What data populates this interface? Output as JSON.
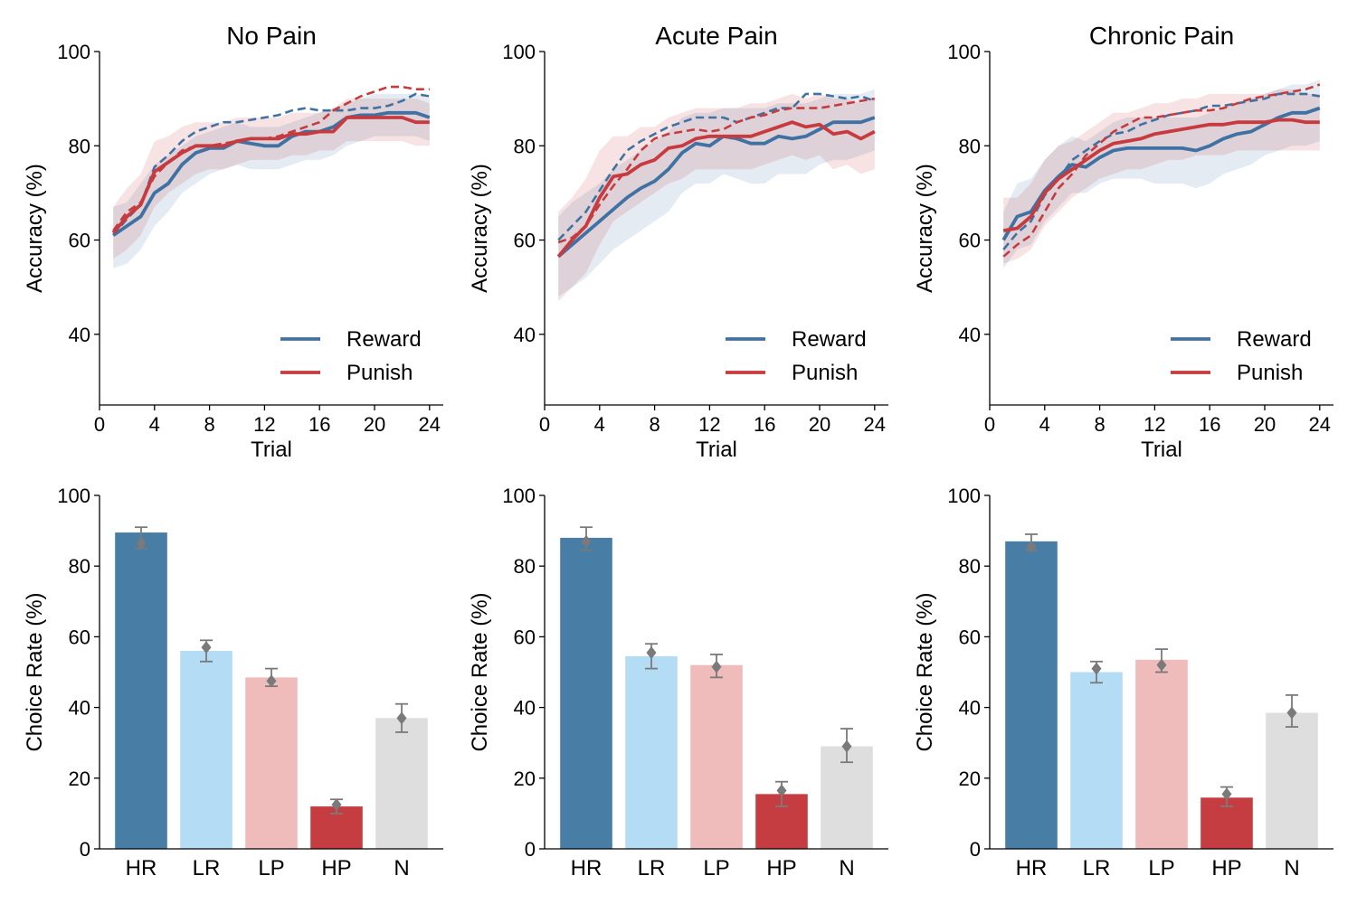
{
  "chart_data": [
    {
      "type": "line",
      "title": "No Pain",
      "xlabel": "Trial",
      "ylabel": "Accuracy (%)",
      "xlim": [
        0,
        25
      ],
      "ylim": [
        25,
        100
      ],
      "xticks": [
        0,
        4,
        8,
        12,
        16,
        20,
        24
      ],
      "yticks": [
        40,
        60,
        80,
        100
      ],
      "legend": {
        "placement": "bottom-right",
        "entries": [
          "Reward",
          "Punish"
        ]
      },
      "x": [
        1,
        2,
        3,
        4,
        5,
        6,
        7,
        8,
        9,
        10,
        11,
        12,
        13,
        14,
        15,
        16,
        17,
        18,
        19,
        20,
        21,
        22,
        23,
        24
      ],
      "series": [
        {
          "name": "Reward",
          "color": "#3f72a2",
          "style": "solid",
          "values": [
            61,
            63,
            65,
            70,
            72,
            76,
            78.5,
            79.5,
            79.5,
            81,
            80.5,
            80,
            80,
            82,
            83,
            83,
            84,
            86,
            86.5,
            86.5,
            87,
            87,
            87,
            86
          ],
          "band_low": [
            54,
            55,
            58,
            63,
            66,
            70,
            72,
            74,
            75,
            76,
            75,
            75,
            75,
            76,
            77,
            77,
            78,
            80,
            81,
            82,
            82,
            82,
            82,
            81
          ],
          "band_high": [
            67,
            68,
            72,
            76,
            78,
            80,
            82,
            83,
            84,
            85,
            84,
            84,
            84,
            85,
            86,
            87,
            88,
            89,
            90,
            91,
            91,
            91,
            91,
            90
          ]
        },
        {
          "name": "",
          "color": "#3f72a2",
          "style": "dashed",
          "values": [
            61,
            64.5,
            67.5,
            75.5,
            78,
            81,
            83,
            84,
            85,
            85,
            85.5,
            86,
            86.5,
            87.5,
            88,
            87.5,
            87.5,
            87.5,
            88,
            88,
            88.5,
            89.5,
            91,
            90.5
          ]
        },
        {
          "name": "Punish",
          "color": "#c73b3f",
          "style": "solid",
          "values": [
            61.5,
            65,
            67.5,
            74.5,
            76.5,
            78.5,
            80,
            80,
            80,
            81,
            81.5,
            81.5,
            81.5,
            82.5,
            82.5,
            83,
            83,
            86,
            86,
            86,
            86,
            86,
            85,
            85
          ],
          "band_low": [
            56,
            58,
            61,
            67,
            70,
            72,
            74,
            75,
            75,
            76,
            77,
            77,
            77,
            78,
            78,
            79,
            79,
            81,
            81,
            81,
            81,
            81,
            80,
            80
          ],
          "band_high": [
            67,
            71,
            74,
            81,
            82,
            84,
            85,
            85,
            85,
            86,
            86,
            86,
            86,
            87,
            87,
            87,
            88,
            90,
            90,
            90,
            90,
            90,
            90,
            89
          ]
        },
        {
          "name": "",
          "color": "#c73b3f",
          "style": "dashed",
          "values": [
            62,
            66,
            68,
            73.5,
            76.5,
            79,
            80,
            80,
            80.5,
            81,
            81.5,
            81.5,
            82,
            83,
            84,
            85,
            87.5,
            89,
            90.5,
            91.5,
            92.5,
            92.5,
            92,
            92
          ]
        }
      ]
    },
    {
      "type": "line",
      "title": "Acute Pain",
      "xlabel": "Trial",
      "ylabel": "Accuracy (%)",
      "xlim": [
        0,
        25
      ],
      "ylim": [
        25,
        100
      ],
      "xticks": [
        0,
        4,
        8,
        12,
        16,
        20,
        24
      ],
      "yticks": [
        40,
        60,
        80,
        100
      ],
      "legend": {
        "placement": "bottom-right",
        "entries": [
          "Reward",
          "Punish"
        ]
      },
      "x": [
        1,
        2,
        3,
        4,
        5,
        6,
        7,
        8,
        9,
        10,
        11,
        12,
        13,
        14,
        15,
        16,
        17,
        18,
        19,
        20,
        21,
        22,
        23,
        24
      ],
      "series": [
        {
          "name": "Reward",
          "color": "#3f72a2",
          "style": "solid",
          "values": [
            56.5,
            59,
            61.5,
            64,
            66.5,
            69,
            71,
            72.5,
            75,
            78.5,
            80.5,
            80,
            82,
            81.5,
            80.5,
            80.5,
            82,
            81.5,
            82,
            83.5,
            85,
            85,
            85,
            86
          ],
          "band_low": [
            48,
            50,
            52,
            55,
            58,
            60,
            62,
            64,
            66,
            70,
            72,
            72,
            74,
            73,
            72,
            72,
            74,
            74,
            74,
            76,
            77,
            77,
            78,
            79
          ],
          "band_high": [
            65,
            68,
            70,
            72,
            75,
            77,
            79,
            81,
            83,
            86,
            87,
            87,
            88,
            88,
            88,
            88,
            89,
            89,
            89,
            90,
            91,
            91,
            91,
            92
          ]
        },
        {
          "name": "",
          "color": "#3f72a2",
          "style": "dashed",
          "values": [
            60,
            63,
            66,
            70.5,
            75,
            79,
            81,
            82.5,
            84,
            85,
            86,
            86,
            86,
            85,
            86,
            87,
            88,
            88,
            91,
            91,
            90.5,
            90,
            90.5,
            89.5
          ]
        },
        {
          "name": "Punish",
          "color": "#c73b3f",
          "style": "solid",
          "values": [
            56.5,
            60,
            63,
            69,
            73.5,
            74,
            76,
            77,
            79.5,
            80,
            81.5,
            82,
            82,
            82,
            82,
            83,
            84,
            85,
            84,
            84.5,
            82.5,
            83,
            81.5,
            83
          ],
          "band_low": [
            47,
            50,
            53,
            59,
            64,
            66,
            68,
            70,
            72,
            73,
            75,
            75,
            75,
            75,
            75,
            76,
            77,
            78,
            77,
            78,
            75,
            76,
            74,
            75
          ],
          "band_high": [
            66,
            69,
            73,
            79,
            82,
            82,
            84,
            84,
            86,
            87,
            88,
            88,
            88,
            88,
            89,
            89,
            90,
            91,
            90,
            91,
            90,
            90,
            89,
            90
          ]
        },
        {
          "name": "",
          "color": "#c73b3f",
          "style": "dashed",
          "values": [
            59.5,
            60.5,
            63,
            67.5,
            71.5,
            75,
            79,
            81.5,
            82.5,
            83,
            83.5,
            83,
            83.5,
            85,
            86,
            86.5,
            87.5,
            88,
            88,
            88,
            88.5,
            89,
            89.5,
            90
          ]
        }
      ]
    },
    {
      "type": "line",
      "title": "Chronic Pain",
      "xlabel": "Trial",
      "ylabel": "Accuracy (%)",
      "xlim": [
        0,
        25
      ],
      "ylim": [
        25,
        100
      ],
      "xticks": [
        0,
        4,
        8,
        12,
        16,
        20,
        24
      ],
      "yticks": [
        40,
        60,
        80,
        100
      ],
      "legend": {
        "placement": "bottom-right",
        "entries": [
          "Reward",
          "Punish"
        ]
      },
      "x": [
        1,
        2,
        3,
        4,
        5,
        6,
        7,
        8,
        9,
        10,
        11,
        12,
        13,
        14,
        15,
        16,
        17,
        18,
        19,
        20,
        21,
        22,
        23,
        24
      ],
      "series": [
        {
          "name": "Reward",
          "color": "#3f72a2",
          "style": "solid",
          "values": [
            60,
            65,
            66,
            70.5,
            73.5,
            76,
            75.5,
            77.5,
            79,
            79.5,
            79.5,
            79.5,
            79.5,
            79.5,
            79,
            80,
            81.5,
            82.5,
            83,
            84.5,
            86,
            87,
            87,
            88
          ],
          "band_low": [
            54,
            58,
            59,
            64,
            67,
            70,
            70,
            72,
            73,
            73,
            73,
            72,
            72,
            72,
            71,
            72,
            74,
            75,
            76,
            78,
            79,
            80,
            80,
            81
          ],
          "band_high": [
            66,
            72,
            73,
            77,
            80,
            82,
            81,
            83,
            85,
            86,
            86,
            86,
            86,
            86,
            86,
            87,
            88,
            89,
            90,
            91,
            92,
            93,
            93,
            94
          ]
        },
        {
          "name": "",
          "color": "#3f72a2",
          "style": "dashed",
          "values": [
            58,
            61.5,
            64,
            69.5,
            73,
            77,
            79,
            81,
            82.5,
            83,
            84.5,
            85.5,
            86.5,
            87,
            87.5,
            88.5,
            88.5,
            89,
            89.5,
            90,
            91,
            91,
            91,
            90.5
          ]
        },
        {
          "name": "Punish",
          "color": "#c73b3f",
          "style": "solid",
          "values": [
            62,
            62.5,
            65,
            70,
            73,
            75,
            77,
            79,
            80.5,
            81,
            81.5,
            82.5,
            83,
            83.5,
            84,
            84.5,
            84.5,
            85,
            85,
            85,
            85.5,
            85.5,
            85,
            85
          ],
          "band_low": [
            55,
            56,
            58,
            63,
            66,
            69,
            71,
            73,
            74,
            75,
            75,
            76,
            77,
            77,
            78,
            78,
            78,
            79,
            79,
            79,
            79,
            79,
            79,
            79
          ],
          "band_high": [
            69,
            69,
            72,
            77,
            80,
            81,
            83,
            85,
            87,
            87,
            88,
            89,
            89,
            90,
            90,
            91,
            91,
            91,
            91,
            91,
            92,
            92,
            91,
            91
          ]
        },
        {
          "name": "",
          "color": "#c73b3f",
          "style": "dashed",
          "values": [
            56.5,
            59,
            61,
            66,
            71,
            74,
            78,
            80.5,
            83,
            84.5,
            86,
            86,
            86.5,
            87,
            87.5,
            87.5,
            88,
            89,
            90,
            90.5,
            91,
            91.5,
            92,
            93
          ]
        }
      ]
    },
    {
      "type": "bar",
      "title": "",
      "xlabel": "",
      "ylabel": "Choice Rate (%)",
      "ylim": [
        0,
        100
      ],
      "yticks": [
        0,
        20,
        40,
        60,
        80,
        100
      ],
      "categories": [
        "HR",
        "LR",
        "LP",
        "HP",
        "N"
      ],
      "bar_colors": [
        "#487da6",
        "#b4dcf5",
        "#f0bbbb",
        "#c63d41",
        "#dedede"
      ],
      "values": [
        89.5,
        56,
        48.5,
        12,
        37
      ],
      "markers": [
        86.5,
        57,
        47.5,
        12.5,
        37
      ],
      "error_low": [
        85,
        53,
        46,
        10,
        33
      ],
      "error_high": [
        91,
        59,
        51,
        14,
        41
      ]
    },
    {
      "type": "bar",
      "title": "",
      "xlabel": "",
      "ylabel": "Choice Rate (%)",
      "ylim": [
        0,
        100
      ],
      "yticks": [
        0,
        20,
        40,
        60,
        80,
        100
      ],
      "categories": [
        "HR",
        "LR",
        "LP",
        "HP",
        "N"
      ],
      "bar_colors": [
        "#487da6",
        "#b4dcf5",
        "#f0bbbb",
        "#c63d41",
        "#dedede"
      ],
      "values": [
        88,
        54.5,
        52,
        15.5,
        29
      ],
      "markers": [
        87,
        55.5,
        51.5,
        16.5,
        29
      ],
      "error_low": [
        84.5,
        51,
        48.5,
        12,
        24.5
      ],
      "error_high": [
        91,
        58,
        55,
        19,
        34
      ]
    },
    {
      "type": "bar",
      "title": "",
      "xlabel": "",
      "ylabel": "Choice Rate (%)",
      "ylim": [
        0,
        100
      ],
      "yticks": [
        0,
        20,
        40,
        60,
        80,
        100
      ],
      "categories": [
        "HR",
        "LR",
        "LP",
        "HP",
        "N"
      ],
      "bar_colors": [
        "#487da6",
        "#b4dcf5",
        "#f0bbbb",
        "#c63d41",
        "#dedede"
      ],
      "values": [
        87,
        50,
        53.5,
        14.5,
        38.5
      ],
      "markers": [
        85.5,
        51,
        52,
        15.5,
        38.5
      ],
      "error_low": [
        84.5,
        47,
        50,
        12,
        34.5
      ],
      "error_high": [
        89,
        53,
        56.5,
        17.5,
        43.5
      ]
    }
  ]
}
